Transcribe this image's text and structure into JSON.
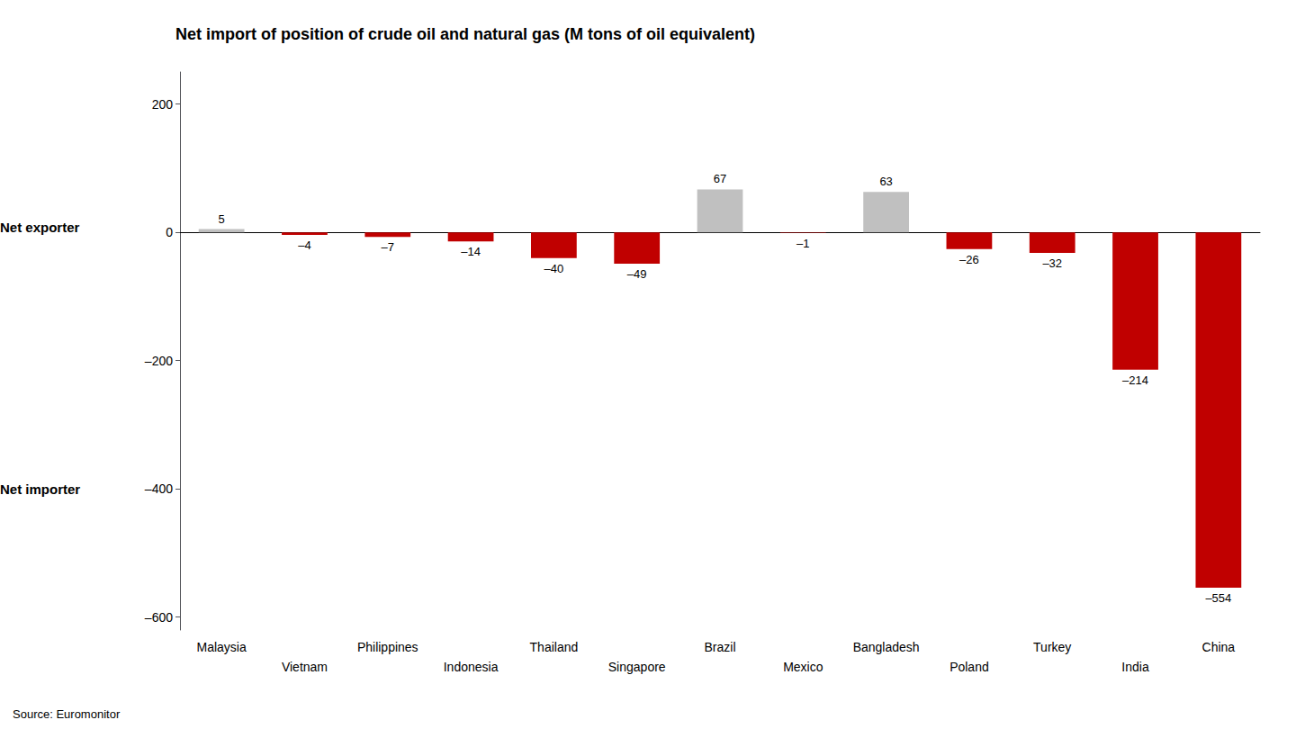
{
  "chart_data": {
    "type": "bar",
    "title": "Net import of position of crude oil and natural gas (M tons of oil equivalent)",
    "categories": [
      "Malaysia",
      "Vietnam",
      "Philippines",
      "Indonesia",
      "Thailand",
      "Singapore",
      "Brazil",
      "Mexico",
      "Bangladesh",
      "Poland",
      "Turkey",
      "India",
      "China"
    ],
    "values": [
      5,
      -4,
      -7,
      -14,
      -40,
      -49,
      67,
      -1,
      63,
      -26,
      -32,
      -214,
      -554
    ],
    "colors": [
      "#c0c0c0",
      "#c00000",
      "#c00000",
      "#c00000",
      "#c00000",
      "#c00000",
      "#c0c0c0",
      "#c00000",
      "#c0c0c0",
      "#c00000",
      "#c00000",
      "#c00000",
      "#c00000"
    ],
    "data_labels": true,
    "value_labels": [
      "5",
      "–4",
      "–7",
      "–14",
      "–40",
      "–49",
      "67",
      "–1",
      "63",
      "–26",
      "–32",
      "–214",
      "–554"
    ],
    "ylim": [
      -620,
      250
    ],
    "yticks": [
      {
        "value": -600,
        "label": "–600"
      },
      {
        "value": -400,
        "label": "–400"
      },
      {
        "value": -200,
        "label": "–200"
      },
      0,
      200
    ],
    "grid": false,
    "annotations": [
      "Net exporter",
      "Net importer",
      "Source: Euromonitor"
    ]
  }
}
